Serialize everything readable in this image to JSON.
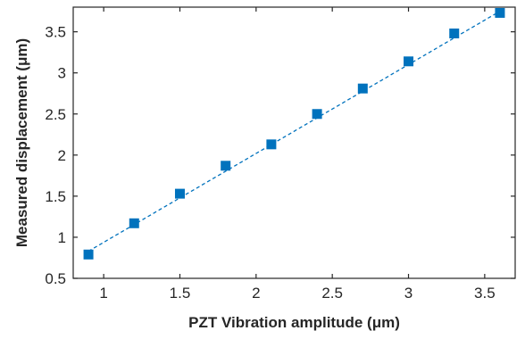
{
  "chart_data": {
    "type": "scatter",
    "title": "",
    "xlabel": "PZT Vibration amplitude (μm)",
    "ylabel": "Measured displacement (μm)",
    "xlim": [
      0.8,
      3.7
    ],
    "ylim": [
      0.5,
      3.8
    ],
    "xticks": [
      "1",
      "1.5",
      "2",
      "2.5",
      "3",
      "3.5"
    ],
    "yticks": [
      "0.5",
      "1",
      "1.5",
      "2",
      "2.5",
      "3",
      "3.5"
    ],
    "grid": false,
    "legend": "none",
    "colors": {
      "marker": "#0072BD",
      "fit_line": "#0072BD",
      "axes": "#262626"
    },
    "series": [
      {
        "marker": "square",
        "x": [
          0.9,
          1.2,
          1.5,
          1.8,
          2.1,
          2.4,
          2.7,
          3.0,
          3.3,
          3.6
        ],
        "y": [
          0.79,
          1.17,
          1.53,
          1.87,
          2.13,
          2.5,
          2.81,
          3.14,
          3.48,
          3.73
        ]
      }
    ],
    "fit_line": {
      "style": "dashed",
      "x": [
        0.9,
        3.6
      ],
      "y": [
        0.83,
        3.75
      ]
    }
  }
}
